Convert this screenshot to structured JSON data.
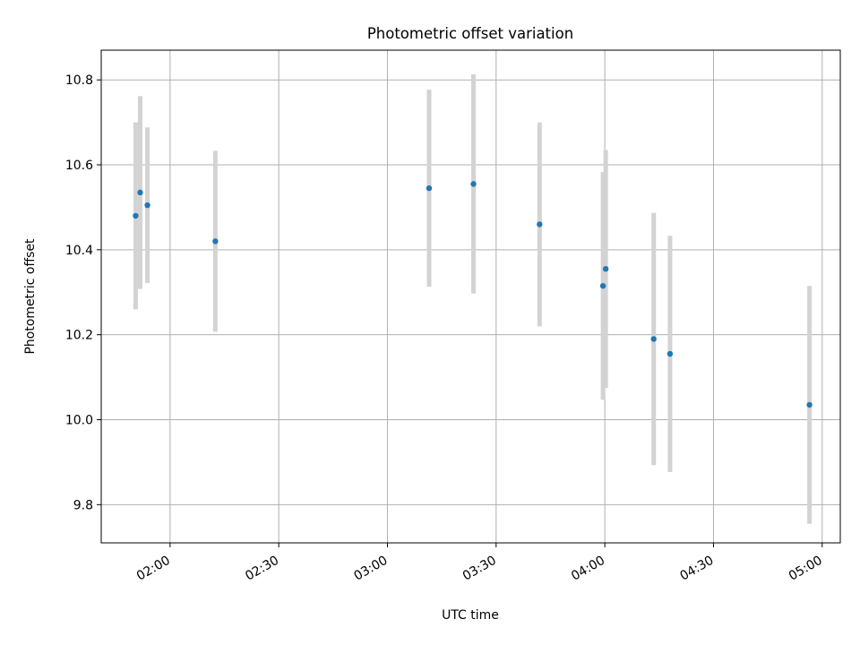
{
  "chart_data": {
    "type": "scatter",
    "title": "Photometric offset variation",
    "xlabel": "UTC time",
    "ylabel": "Photometric offset",
    "xlim": [
      "01:41",
      "05:05"
    ],
    "ylim": [
      9.71,
      10.87
    ],
    "grid": true,
    "x_ticks": [
      "02:00",
      "02:30",
      "03:00",
      "03:30",
      "04:00",
      "04:30",
      "05:00"
    ],
    "y_ticks": [
      "9.8",
      "10.0",
      "10.2",
      "10.4",
      "10.6",
      "10.8"
    ],
    "colors": {
      "point": "#1f77b4",
      "errorbar": "#d3d3d3",
      "grid": "#b0b0b0"
    },
    "series": [
      {
        "x": [
          "01:50:30",
          "01:51:45",
          "01:53:45",
          "02:12:30",
          "03:11:30",
          "03:23:45",
          "03:42:00",
          "03:59:30",
          "04:00:15",
          "04:13:30",
          "04:18:00",
          "04:56:30"
        ],
        "y": [
          10.48,
          10.535,
          10.505,
          10.42,
          10.545,
          10.555,
          10.46,
          10.315,
          10.355,
          10.19,
          10.155,
          10.035
        ],
        "err": [
          0.22,
          0.227,
          0.183,
          0.213,
          0.232,
          0.258,
          0.24,
          0.268,
          0.28,
          0.297,
          0.278,
          0.28
        ]
      }
    ]
  }
}
